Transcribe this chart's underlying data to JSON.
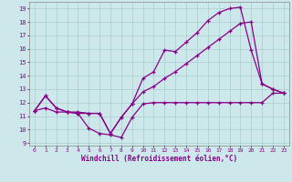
{
  "xlabel": "Windchill (Refroidissement éolien,°C)",
  "xlim": [
    -0.5,
    23.5
  ],
  "ylim": [
    8.8,
    19.5
  ],
  "yticks": [
    9,
    10,
    11,
    12,
    13,
    14,
    15,
    16,
    17,
    18,
    19
  ],
  "xticks": [
    0,
    1,
    2,
    3,
    4,
    5,
    6,
    7,
    8,
    9,
    10,
    11,
    12,
    13,
    14,
    15,
    16,
    17,
    18,
    19,
    20,
    21,
    22,
    23
  ],
  "background_color": "#cce8eb",
  "grid_color": "#aacccc",
  "line_color": "#880088",
  "line_width": 0.9,
  "marker": "+",
  "marker_size": 3.5,
  "marker_edge_width": 0.9,
  "curves": [
    [
      11.4,
      12.5,
      11.6,
      11.3,
      11.2,
      10.1,
      9.7,
      9.6,
      9.4,
      10.9,
      11.9,
      12.0,
      12.0,
      12.0,
      12.0,
      12.0,
      12.0,
      12.0,
      12.0,
      12.0,
      12.0,
      12.0,
      12.7,
      12.7
    ],
    [
      11.4,
      12.5,
      11.6,
      11.3,
      11.3,
      11.2,
      11.2,
      9.7,
      10.9,
      11.9,
      13.8,
      14.3,
      15.9,
      15.8,
      16.5,
      17.2,
      18.1,
      18.7,
      19.0,
      19.1,
      15.9,
      13.4,
      13.0,
      12.7
    ],
    [
      11.4,
      11.6,
      11.3,
      11.3,
      11.2,
      11.2,
      11.2,
      9.7,
      10.9,
      11.9,
      12.8,
      13.2,
      13.8,
      14.3,
      14.9,
      15.5,
      16.1,
      16.7,
      17.3,
      17.9,
      18.0,
      13.4,
      13.0,
      12.7
    ]
  ]
}
